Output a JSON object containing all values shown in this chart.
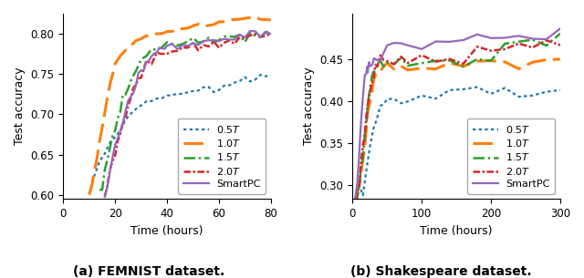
{
  "fig_width": 6.4,
  "fig_height": 3.05,
  "dpi": 100,
  "femnist": {
    "xlim": [
      0,
      80
    ],
    "ylim": [
      0.595,
      0.825
    ],
    "yticks": [
      0.6,
      0.65,
      0.7,
      0.75,
      0.8
    ],
    "xticks": [
      0,
      20,
      40,
      60,
      80
    ],
    "xlabel": "Time (hours)",
    "ylabel": "Test accuracy",
    "curves": {
      "0.5T": {
        "color": "#1f77b4",
        "noise": 0.002,
        "x": [
          10,
          12,
          14,
          16,
          18,
          20,
          22,
          24,
          26,
          28,
          30,
          32,
          34,
          36,
          38,
          40,
          42,
          44,
          46,
          48,
          50,
          52,
          54,
          56,
          58,
          60,
          62,
          64,
          66,
          68,
          70,
          72,
          74,
          76,
          78,
          80
        ],
        "y": [
          0.6,
          0.622,
          0.641,
          0.654,
          0.663,
          0.671,
          0.681,
          0.692,
          0.7,
          0.706,
          0.711,
          0.715,
          0.718,
          0.72,
          0.721,
          0.722,
          0.724,
          0.726,
          0.727,
          0.728,
          0.729,
          0.73,
          0.731,
          0.732,
          0.733,
          0.734,
          0.736,
          0.737,
          0.739,
          0.741,
          0.742,
          0.743,
          0.744,
          0.745,
          0.746,
          0.747
        ]
      },
      "1.0T": {
        "color": "#ff7f0e",
        "noise": 0.001,
        "x": [
          10,
          11,
          12,
          13,
          14,
          15,
          16,
          17,
          18,
          19,
          20,
          22,
          24,
          26,
          28,
          30,
          32,
          34,
          36,
          38,
          40,
          42,
          44,
          46,
          48,
          50,
          52,
          54,
          56,
          58,
          60,
          62,
          64,
          66,
          68,
          70,
          72,
          74,
          76,
          78,
          80
        ],
        "y": [
          0.6,
          0.612,
          0.63,
          0.648,
          0.665,
          0.682,
          0.702,
          0.72,
          0.737,
          0.75,
          0.762,
          0.773,
          0.78,
          0.786,
          0.791,
          0.794,
          0.797,
          0.799,
          0.8,
          0.801,
          0.802,
          0.803,
          0.805,
          0.806,
          0.808,
          0.809,
          0.81,
          0.811,
          0.812,
          0.813,
          0.814,
          0.815,
          0.816,
          0.817,
          0.818,
          0.819,
          0.82,
          0.82,
          0.819,
          0.818,
          0.817
        ]
      },
      "1.5T": {
        "color": "#2ca02c",
        "noise": 0.003,
        "x": [
          14,
          15,
          16,
          17,
          18,
          19,
          20,
          21,
          22,
          23,
          24,
          25,
          26,
          27,
          28,
          29,
          30,
          32,
          34,
          36,
          38,
          40,
          42,
          44,
          46,
          48,
          50,
          52,
          54,
          56,
          58,
          60,
          62,
          64,
          66,
          68,
          70,
          72,
          74,
          76,
          78,
          80
        ],
        "y": [
          0.6,
          0.614,
          0.63,
          0.645,
          0.66,
          0.674,
          0.686,
          0.696,
          0.706,
          0.715,
          0.724,
          0.733,
          0.742,
          0.75,
          0.757,
          0.762,
          0.767,
          0.773,
          0.778,
          0.781,
          0.783,
          0.785,
          0.786,
          0.787,
          0.788,
          0.789,
          0.789,
          0.79,
          0.791,
          0.792,
          0.792,
          0.793,
          0.794,
          0.795,
          0.796,
          0.797,
          0.798,
          0.799,
          0.8,
          0.801,
          0.801,
          0.801
        ]
      },
      "2.0T": {
        "color": "#d62728",
        "noise": 0.003,
        "x": [
          16,
          17,
          18,
          19,
          20,
          21,
          22,
          23,
          24,
          25,
          26,
          27,
          28,
          29,
          30,
          32,
          34,
          36,
          38,
          40,
          42,
          44,
          46,
          48,
          50,
          52,
          54,
          56,
          58,
          60,
          62,
          64,
          66,
          68,
          70,
          72,
          74,
          76,
          78,
          80
        ],
        "y": [
          0.6,
          0.612,
          0.626,
          0.64,
          0.654,
          0.667,
          0.678,
          0.69,
          0.701,
          0.71,
          0.719,
          0.728,
          0.736,
          0.743,
          0.75,
          0.76,
          0.768,
          0.773,
          0.776,
          0.778,
          0.78,
          0.781,
          0.782,
          0.783,
          0.784,
          0.785,
          0.786,
          0.787,
          0.788,
          0.789,
          0.79,
          0.791,
          0.792,
          0.793,
          0.794,
          0.795,
          0.797,
          0.799,
          0.8,
          0.801
        ]
      },
      "SmartPC": {
        "color": "#9467bd",
        "noise": 0.003,
        "x": [
          16,
          17,
          18,
          19,
          20,
          21,
          22,
          23,
          24,
          25,
          26,
          27,
          28,
          29,
          30,
          31,
          32,
          33,
          34,
          35,
          36,
          37,
          38,
          39,
          40,
          42,
          44,
          46,
          48,
          50,
          52,
          54,
          56,
          58,
          60,
          62,
          64,
          66,
          68,
          70,
          72,
          74,
          76,
          78,
          80
        ],
        "y": [
          0.6,
          0.614,
          0.63,
          0.645,
          0.659,
          0.67,
          0.681,
          0.692,
          0.702,
          0.712,
          0.721,
          0.73,
          0.739,
          0.747,
          0.754,
          0.76,
          0.765,
          0.77,
          0.774,
          0.777,
          0.779,
          0.781,
          0.782,
          0.783,
          0.784,
          0.785,
          0.786,
          0.787,
          0.788,
          0.789,
          0.79,
          0.791,
          0.792,
          0.793,
          0.794,
          0.795,
          0.796,
          0.797,
          0.798,
          0.799,
          0.8,
          0.801,
          0.802,
          0.802,
          0.803
        ]
      }
    }
  },
  "shakespeare": {
    "xlim": [
      0,
      300
    ],
    "ylim": [
      0.283,
      0.505
    ],
    "yticks": [
      0.3,
      0.35,
      0.4,
      0.45
    ],
    "xticks": [
      0,
      100,
      200,
      300
    ],
    "xlabel": "Time (hours)",
    "ylabel": "Test accuracy",
    "curves": {
      "0.5T": {
        "color": "#1f77b4",
        "noise": 0.005,
        "x": [
          5,
          10,
          15,
          20,
          25,
          30,
          35,
          40,
          45,
          50,
          60,
          70,
          80,
          100,
          120,
          140,
          160,
          180,
          200,
          220,
          240,
          260,
          280,
          300
        ],
        "y": [
          0.285,
          0.29,
          0.3,
          0.318,
          0.34,
          0.36,
          0.375,
          0.387,
          0.395,
          0.4,
          0.402,
          0.403,
          0.404,
          0.405,
          0.406,
          0.407,
          0.408,
          0.408,
          0.409,
          0.409,
          0.41,
          0.411,
          0.411,
          0.412
        ]
      },
      "1.0T": {
        "color": "#ff7f0e",
        "noise": 0.004,
        "x": [
          5,
          8,
          10,
          12,
          15,
          18,
          20,
          22,
          25,
          28,
          30,
          33,
          36,
          40,
          45,
          50,
          60,
          70,
          80,
          100,
          120,
          140,
          160,
          180,
          200,
          220,
          240,
          260,
          280,
          300
        ],
        "y": [
          0.285,
          0.293,
          0.302,
          0.315,
          0.332,
          0.352,
          0.368,
          0.382,
          0.4,
          0.414,
          0.422,
          0.43,
          0.436,
          0.44,
          0.442,
          0.443,
          0.444,
          0.444,
          0.445,
          0.445,
          0.446,
          0.447,
          0.447,
          0.447,
          0.448,
          0.448,
          0.449,
          0.449,
          0.45,
          0.45
        ]
      },
      "1.5T": {
        "color": "#2ca02c",
        "noise": 0.004,
        "x": [
          5,
          8,
          10,
          12,
          15,
          18,
          20,
          22,
          25,
          28,
          30,
          33,
          36,
          40,
          45,
          50,
          60,
          70,
          80,
          100,
          120,
          140,
          160,
          180,
          200,
          220,
          240,
          260,
          280,
          300
        ],
        "y": [
          0.285,
          0.295,
          0.305,
          0.32,
          0.34,
          0.362,
          0.378,
          0.393,
          0.41,
          0.424,
          0.432,
          0.437,
          0.44,
          0.443,
          0.444,
          0.444,
          0.445,
          0.446,
          0.446,
          0.447,
          0.447,
          0.448,
          0.448,
          0.449,
          0.449,
          0.47,
          0.472,
          0.473,
          0.474,
          0.475
        ]
      },
      "2.0T": {
        "color": "#d62728",
        "noise": 0.004,
        "x": [
          5,
          8,
          10,
          12,
          15,
          18,
          20,
          22,
          25,
          28,
          30,
          33,
          36,
          40,
          45,
          50,
          60,
          70,
          80,
          100,
          120,
          140,
          160,
          180,
          200,
          220,
          240,
          260,
          280,
          300
        ],
        "y": [
          0.285,
          0.295,
          0.306,
          0.322,
          0.342,
          0.364,
          0.38,
          0.395,
          0.412,
          0.426,
          0.433,
          0.438,
          0.442,
          0.445,
          0.446,
          0.447,
          0.447,
          0.448,
          0.448,
          0.449,
          0.449,
          0.45,
          0.451,
          0.456,
          0.461,
          0.464,
          0.466,
          0.468,
          0.47,
          0.472
        ]
      },
      "SmartPC": {
        "color": "#9467bd",
        "noise": 0.004,
        "x": [
          3,
          5,
          7,
          8,
          9,
          10,
          11,
          12,
          13,
          14,
          15,
          16,
          17,
          18,
          19,
          20,
          21,
          22,
          23,
          24,
          25,
          27,
          29,
          31,
          35,
          40,
          45,
          50,
          60,
          70,
          80,
          100,
          120,
          140,
          160,
          180,
          200,
          220,
          240,
          260,
          280,
          300
        ],
        "y": [
          0.285,
          0.293,
          0.306,
          0.316,
          0.328,
          0.34,
          0.354,
          0.368,
          0.382,
          0.396,
          0.408,
          0.418,
          0.426,
          0.432,
          0.436,
          0.438,
          0.44,
          0.442,
          0.444,
          0.445,
          0.446,
          0.447,
          0.448,
          0.449,
          0.45,
          0.456,
          0.46,
          0.463,
          0.466,
          0.467,
          0.468,
          0.47,
          0.471,
          0.472,
          0.473,
          0.474,
          0.475,
          0.475,
          0.476,
          0.476,
          0.477,
          0.49
        ]
      }
    }
  }
}
